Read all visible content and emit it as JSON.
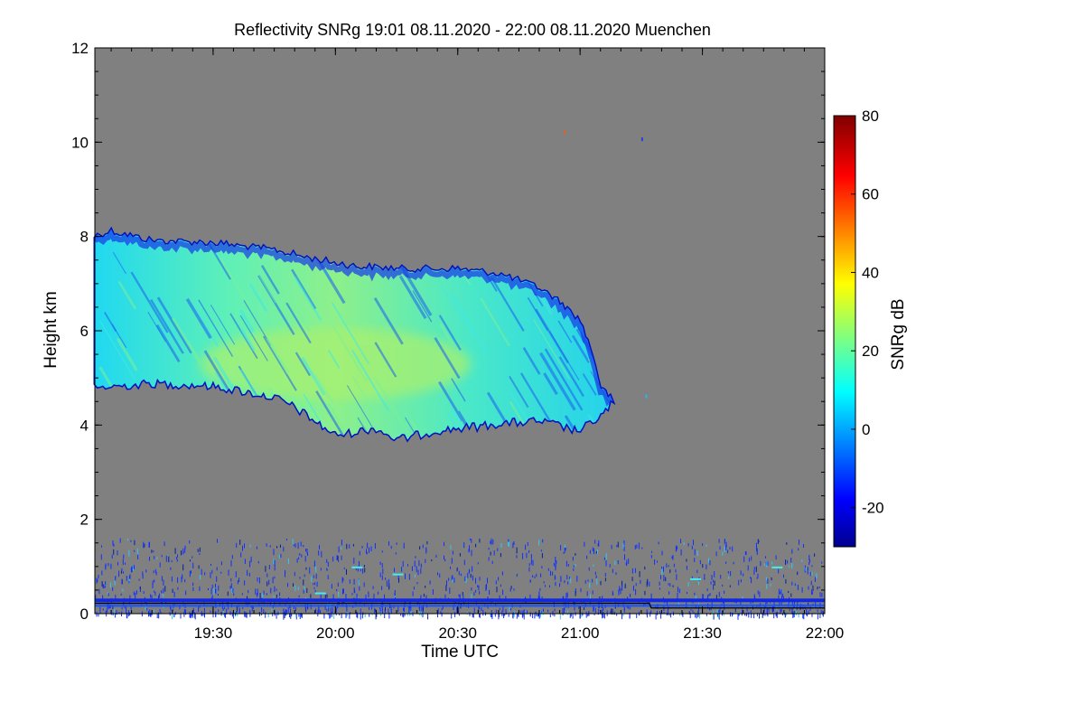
{
  "chart_data": {
    "type": "heatmap",
    "title": "Reflectivity SNRg   19:01 08.11.2020 - 22:00 08.11.2020 Muenchen",
    "xlabel": "Time UTC",
    "ylabel": "Height km",
    "xlim": [
      "19:01",
      "22:00"
    ],
    "x_ticks": [
      "19:30",
      "20:00",
      "20:30",
      "21:00",
      "21:30",
      "22:00"
    ],
    "ylim": [
      0,
      12
    ],
    "y_ticks": [
      "0",
      "2",
      "4",
      "6",
      "8",
      "10",
      "12"
    ],
    "background_color": "#808080",
    "colorbar": {
      "label": "SNRg dB",
      "range": [
        -30,
        80
      ],
      "ticks": [
        "-20",
        "0",
        "20",
        "40",
        "60",
        "80"
      ],
      "colormap": "jet"
    },
    "cloud_layer": {
      "description_values": true,
      "time_start": "19:01",
      "time_end": "21:12",
      "top_profile_km": [
        [
          "19:01",
          8.0
        ],
        [
          "19:05",
          8.1
        ],
        [
          "19:15",
          7.9
        ],
        [
          "19:30",
          7.85
        ],
        [
          "19:45",
          7.7
        ],
        [
          "19:55",
          7.5
        ],
        [
          "20:05",
          7.35
        ],
        [
          "20:15",
          7.3
        ],
        [
          "20:30",
          7.3
        ],
        [
          "20:40",
          7.2
        ],
        [
          "20:50",
          6.9
        ],
        [
          "20:55",
          6.6
        ],
        [
          "21:00",
          6.2
        ],
        [
          "21:03",
          5.5
        ],
        [
          "21:05",
          4.8
        ],
        [
          "21:08",
          4.5
        ]
      ],
      "base_profile_km": [
        [
          "19:01",
          4.8
        ],
        [
          "19:15",
          4.9
        ],
        [
          "19:30",
          4.85
        ],
        [
          "19:45",
          4.6
        ],
        [
          "19:50",
          4.4
        ],
        [
          "19:55",
          4.1
        ],
        [
          "20:00",
          3.8
        ],
        [
          "20:10",
          3.95
        ],
        [
          "20:15",
          3.7
        ],
        [
          "20:25",
          3.9
        ],
        [
          "20:40",
          4.05
        ],
        [
          "20:50",
          4.1
        ],
        [
          "21:00",
          3.9
        ],
        [
          "21:05",
          4.2
        ],
        [
          "21:08",
          4.5
        ]
      ],
      "peak_snr_db": 28,
      "peak_height_km": 5.3,
      "peak_time": "20:00"
    },
    "ground_clutter": {
      "height_max_km": 1.6,
      "snr_db": -15
    }
  }
}
